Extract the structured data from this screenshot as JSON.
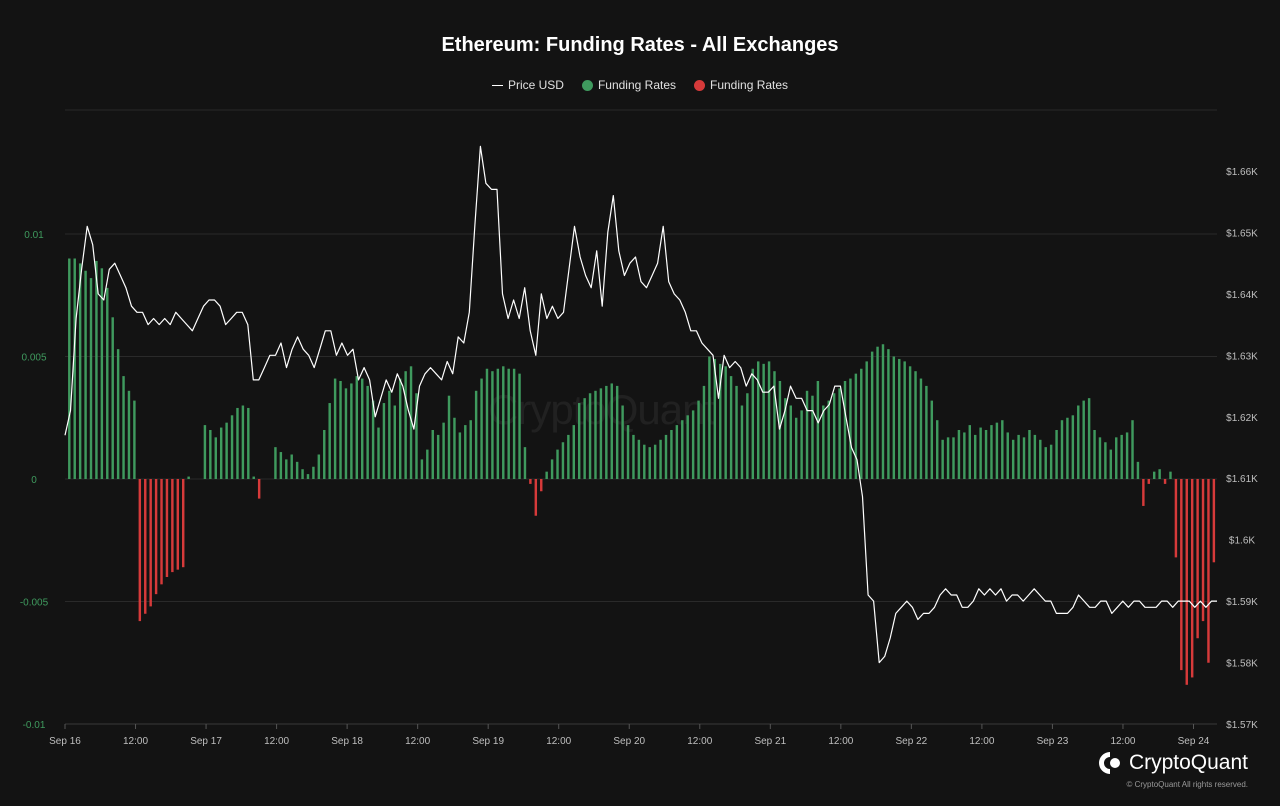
{
  "chart_data": {
    "type": "bar+line",
    "title": "Ethereum: Funding Rates - All Exchanges",
    "legend": [
      {
        "label": "Price USD",
        "color": "#ffffff",
        "marker": "line"
      },
      {
        "label": "Funding Rates",
        "color": "#3f9a5e",
        "marker": "dot"
      },
      {
        "label": "Funding Rates",
        "color": "#d63a3a",
        "marker": "dot"
      }
    ],
    "x_ticks": [
      "Sep 16",
      "12:00",
      "Sep 17",
      "12:00",
      "Sep 18",
      "12:00",
      "Sep 19",
      "12:00",
      "Sep 20",
      "12:00",
      "Sep 21",
      "12:00",
      "Sep 22",
      "12:00",
      "Sep 23",
      "12:00",
      "Sep 24"
    ],
    "x_range_hours": [
      0,
      196
    ],
    "left_axis": {
      "range": [
        -0.01,
        0.01
      ],
      "ticks": [
        "0.01",
        "0.005",
        "0",
        "-0.005",
        "-0.01"
      ],
      "tick_values": [
        0.01,
        0.005,
        0,
        -0.005,
        -0.01
      ]
    },
    "right_axis": {
      "range": [
        1570,
        1660
      ],
      "ticks": [
        "$1.66K",
        "$1.65K",
        "$1.64K",
        "$1.63K",
        "$1.62K",
        "$1.61K",
        "$1.6K",
        "$1.59K",
        "$1.58K",
        "$1.57K"
      ],
      "tick_values": [
        1660,
        1650,
        1640,
        1630,
        1620,
        1610,
        1600,
        1590,
        1580,
        1570
      ]
    },
    "funding_rates": [
      0.009,
      0.009,
      0.0088,
      0.0085,
      0.0082,
      0.0089,
      0.0086,
      0.0078,
      0.0066,
      0.0053,
      0.0042,
      0.0036,
      0.0032,
      -0.0058,
      -0.0055,
      -0.0052,
      -0.0047,
      -0.0043,
      -0.004,
      -0.0038,
      -0.0037,
      -0.0036,
      0.0001,
      0,
      0,
      0.0022,
      0.002,
      0.0017,
      0.0021,
      0.0023,
      0.0026,
      0.0029,
      0.003,
      0.0029,
      0.0001,
      -0.0008,
      0,
      0,
      0.0013,
      0.0011,
      0.0008,
      0.001,
      0.0007,
      0.0004,
      0.0002,
      0.0005,
      0.001,
      0.002,
      0.0031,
      0.0041,
      0.004,
      0.0037,
      0.0039,
      0.0042,
      0.0041,
      0.0038,
      0.0032,
      0.0021,
      0.0031,
      0.0036,
      0.003,
      0.0041,
      0.0044,
      0.0046,
      0.0035,
      0.0008,
      0.0012,
      0.002,
      0.0018,
      0.0023,
      0.0034,
      0.0025,
      0.0019,
      0.0022,
      0.0024,
      0.0036,
      0.0041,
      0.0045,
      0.0044,
      0.0045,
      0.0046,
      0.0045,
      0.0045,
      0.0043,
      0.0013,
      -0.0002,
      -0.0015,
      -0.0005,
      0.0003,
      0.0008,
      0.0012,
      0.0015,
      0.0018,
      0.0022,
      0.0031,
      0.0033,
      0.0035,
      0.0036,
      0.0037,
      0.0038,
      0.0039,
      0.0038,
      0.003,
      0.0022,
      0.0018,
      0.0016,
      0.0014,
      0.0013,
      0.0014,
      0.0016,
      0.0018,
      0.002,
      0.0022,
      0.0024,
      0.0026,
      0.0028,
      0.0032,
      0.0038,
      0.005,
      0.0049,
      0.0047,
      0.0046,
      0.0042,
      0.0038,
      0.003,
      0.0035,
      0.0045,
      0.0048,
      0.0047,
      0.0048,
      0.0044,
      0.004,
      0.0033,
      0.003,
      0.0025,
      0.0028,
      0.0036,
      0.0034,
      0.004,
      0.003,
      0.0032,
      0.0035,
      0.0037,
      0.004,
      0.0041,
      0.0043,
      0.0045,
      0.0048,
      0.0052,
      0.0054,
      0.0055,
      0.0053,
      0.005,
      0.0049,
      0.0048,
      0.0046,
      0.0044,
      0.0041,
      0.0038,
      0.0032,
      0.0024,
      0.0016,
      0.0017,
      0.0017,
      0.002,
      0.0019,
      0.0022,
      0.0018,
      0.0021,
      0.002,
      0.0022,
      0.0023,
      0.0024,
      0.0019,
      0.0016,
      0.0018,
      0.0017,
      0.002,
      0.0018,
      0.0016,
      0.0013,
      0.0014,
      0.002,
      0.0024,
      0.0025,
      0.0026,
      0.003,
      0.0032,
      0.0033,
      0.002,
      0.0017,
      0.0015,
      0.0012,
      0.0017,
      0.0018,
      0.0019,
      0.0024,
      0.0007,
      -0.0011,
      -0.0002,
      0.0003,
      0.0004,
      -0.0002,
      0.0003,
      -0.0032,
      -0.0078,
      -0.0084,
      -0.0081,
      -0.0065,
      -0.0058,
      -0.0075,
      -0.0034
    ],
    "price_usd": [
      1617,
      1621,
      1636,
      1644,
      1651,
      1648,
      1640,
      1639,
      1644,
      1645,
      1643,
      1641,
      1638,
      1637,
      1637,
      1635,
      1636,
      1635,
      1636,
      1635,
      1637,
      1636,
      1635,
      1634,
      1636,
      1638,
      1639,
      1639,
      1638,
      1635,
      1636,
      1637,
      1637,
      1635,
      1626,
      1626,
      1628,
      1630,
      1630,
      1632,
      1628,
      1631,
      1633,
      1631,
      1630,
      1628,
      1631,
      1634,
      1634,
      1630,
      1632,
      1630,
      1631,
      1626,
      1628,
      1626,
      1620,
      1623,
      1626,
      1624,
      1627,
      1625,
      1621,
      1618,
      1625,
      1627,
      1628,
      1627,
      1626,
      1629,
      1627,
      1633,
      1632,
      1637,
      1651,
      1664,
      1658,
      1657,
      1657,
      1640,
      1636,
      1639,
      1636,
      1641,
      1634,
      1630,
      1640,
      1636,
      1638,
      1636,
      1637,
      1644,
      1651,
      1646,
      1643,
      1641,
      1647,
      1638,
      1650,
      1656,
      1647,
      1643,
      1645,
      1646,
      1642,
      1641,
      1643,
      1645,
      1651,
      1642,
      1640,
      1639,
      1637,
      1634,
      1634,
      1632,
      1631,
      1630,
      1623,
      1630,
      1628,
      1629,
      1628,
      1625,
      1627,
      1626,
      1624,
      1624,
      1625,
      1618,
      1621,
      1625,
      1623,
      1623,
      1621,
      1621,
      1619,
      1621,
      1622,
      1625,
      1625,
      1620,
      1615,
      1613,
      1607,
      1591,
      1590,
      1580,
      1581,
      1584,
      1588,
      1589,
      1590,
      1589,
      1587,
      1588,
      1588,
      1589,
      1591,
      1592,
      1591,
      1591,
      1589,
      1589,
      1590,
      1592,
      1591,
      1592,
      1591,
      1592,
      1590,
      1591,
      1591,
      1590,
      1591,
      1592,
      1591,
      1590,
      1590,
      1588,
      1588,
      1588,
      1589,
      1591,
      1590,
      1589,
      1589,
      1590,
      1590,
      1588,
      1589,
      1590,
      1589,
      1590,
      1590,
      1589,
      1589,
      1589,
      1590,
      1590,
      1589,
      1590,
      1590,
      1590,
      1589,
      1590,
      1589,
      1590,
      1590
    ],
    "grid": true,
    "legend_position": "top-center"
  },
  "brand": {
    "name": "CryptoQuant",
    "watermark": "CryptoQuant",
    "copyright": "© CryptoQuant All rights reserved."
  },
  "colors": {
    "background": "#131313",
    "positive": "#3f9a5e",
    "negative": "#d63a3a",
    "price": "#ffffff",
    "left_tick": "#3f9a5e",
    "right_tick": "#bfbfbf",
    "grid": "#2a2a2a"
  }
}
